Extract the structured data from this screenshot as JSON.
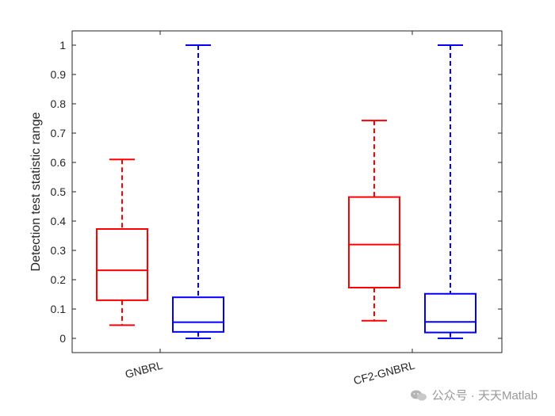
{
  "chart_data": {
    "type": "box",
    "ylabel": "Detection test statistic range",
    "xlabel": "",
    "ylim": [
      -0.05,
      1.05
    ],
    "yticks": [
      0,
      0.1,
      0.2,
      0.3,
      0.4,
      0.5,
      0.6,
      0.7,
      0.8,
      0.9,
      1
    ],
    "ytick_labels": [
      "0",
      "0.1",
      "0.2",
      "0.3",
      "0.4",
      "0.5",
      "0.6",
      "0.7",
      "0.8",
      "0.9",
      "1"
    ],
    "categories": [
      "GNBRL",
      "CF2-GNBRL"
    ],
    "grid": false,
    "series": [
      {
        "color": "#ff0000",
        "boxes": [
          {
            "category": "GNBRL",
            "min": 0.045,
            "q1": 0.13,
            "median": 0.232,
            "q3": 0.373,
            "max": 0.61
          },
          {
            "category": "CF2-GNBRL",
            "min": 0.06,
            "q1": 0.173,
            "median": 0.32,
            "q3": 0.482,
            "max": 0.743
          }
        ]
      },
      {
        "color": "#0000ff",
        "boxes": [
          {
            "category": "GNBRL",
            "min": 0.0,
            "q1": 0.022,
            "median": 0.055,
            "q3": 0.14,
            "max": 1.0
          },
          {
            "category": "CF2-GNBRL",
            "min": 0.0,
            "q1": 0.02,
            "median": 0.056,
            "q3": 0.152,
            "max": 1.0
          }
        ]
      }
    ]
  },
  "watermark": {
    "text": "公众号 · 天天Matlab",
    "icon": "wechat-icon"
  }
}
